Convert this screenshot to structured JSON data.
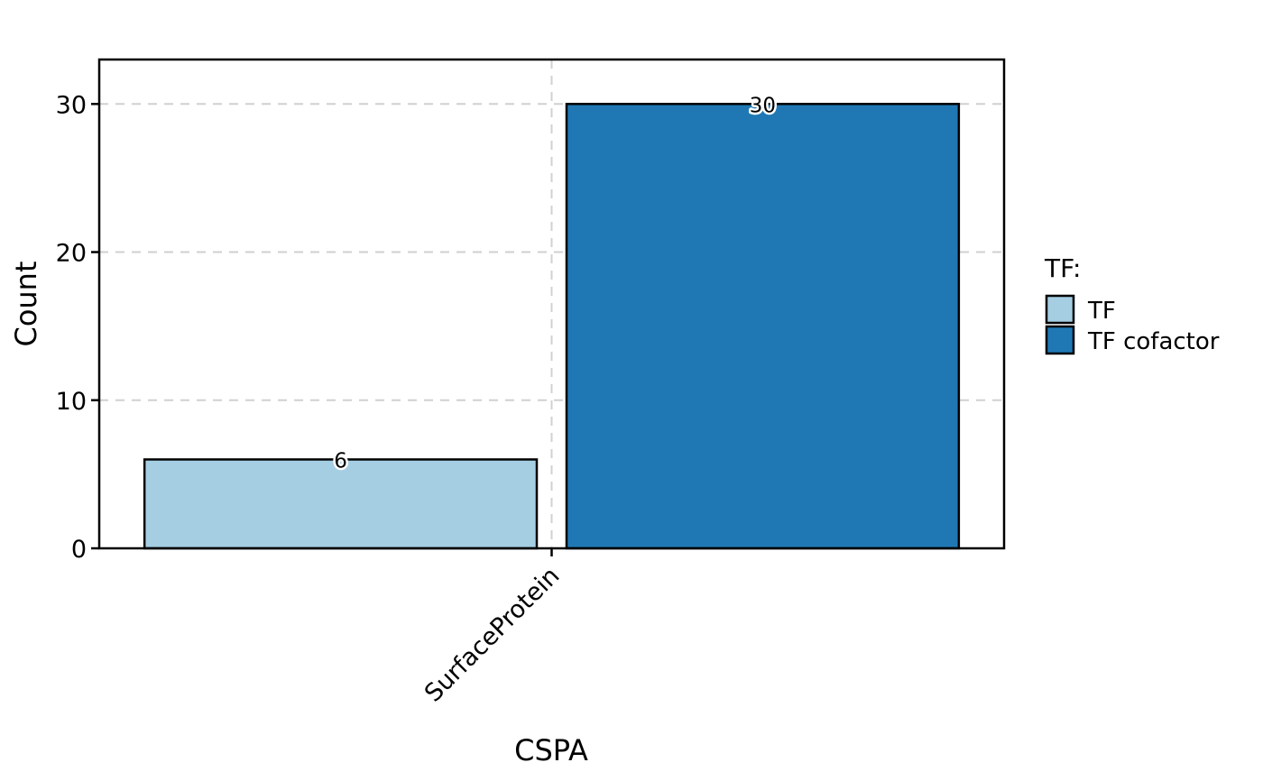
{
  "chart_data": {
    "type": "bar",
    "title": "",
    "xlabel": "CSPA",
    "ylabel": "Count",
    "categories": [
      "SurfaceProtein"
    ],
    "series": [
      {
        "name": "TF",
        "values": [
          6
        ],
        "color": "#A6CEE3"
      },
      {
        "name": "TF cofactor",
        "values": [
          30
        ],
        "color": "#1F78B4"
      }
    ],
    "ylim": [
      0,
      33
    ],
    "yticks": [
      0,
      10,
      20,
      30
    ],
    "grid": true,
    "legend": {
      "title": "TF:",
      "placement": "right"
    },
    "data_labels": [
      "6",
      "30"
    ]
  }
}
